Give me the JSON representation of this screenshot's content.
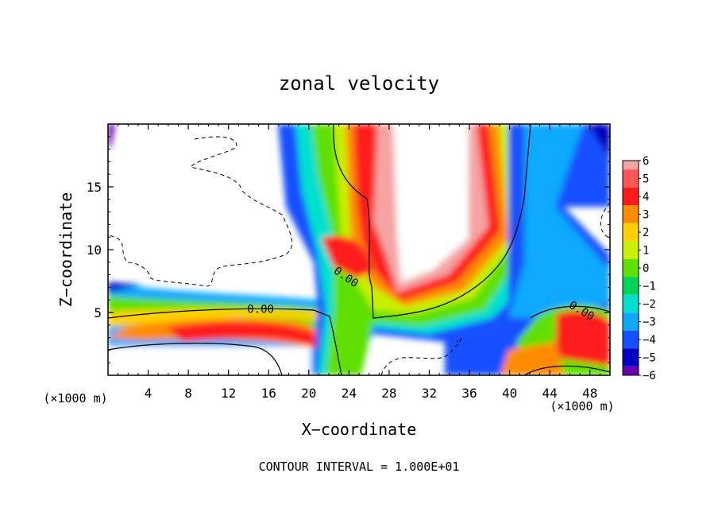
{
  "chart_data": {
    "type": "heatmap",
    "title": "zonal velocity",
    "xlabel": "X−coordinate",
    "ylabel": "Z−coordinate",
    "x_unit_label": "(×1000 m)",
    "y_unit_label": "(×1000 m)",
    "footer": "CONTOUR INTERVAL = 1.000E+01",
    "xlim": [
      0,
      50
    ],
    "ylim": [
      0,
      20
    ],
    "x_ticks": [
      4,
      8,
      12,
      16,
      20,
      24,
      28,
      32,
      36,
      40,
      44,
      48
    ],
    "y_ticks": [
      5,
      10,
      15
    ],
    "grid": false,
    "colorbar": {
      "levels": [
        "6",
        "5",
        "4",
        "3",
        "2",
        "1",
        "0",
        "−1",
        "−2",
        "−3",
        "−4",
        "−5",
        "−6"
      ],
      "colors": [
        "#f5a3a3",
        "#ff5555",
        "#ff1a1a",
        "#ff8c00",
        "#ffd000",
        "#c8f000",
        "#5ee000",
        "#00d25a",
        "#00e0d0",
        "#10a8ff",
        "#1450ff",
        "#0000c0",
        "#6a00b0"
      ]
    },
    "contour_labels": [
      {
        "text": "0.00",
        "x": 15.2,
        "y": 5.3
      },
      {
        "text": "0.00",
        "x": 23.5,
        "y": 7.9
      },
      {
        "text": "0.00",
        "x": 47.0,
        "y": 5.2
      }
    ]
  }
}
